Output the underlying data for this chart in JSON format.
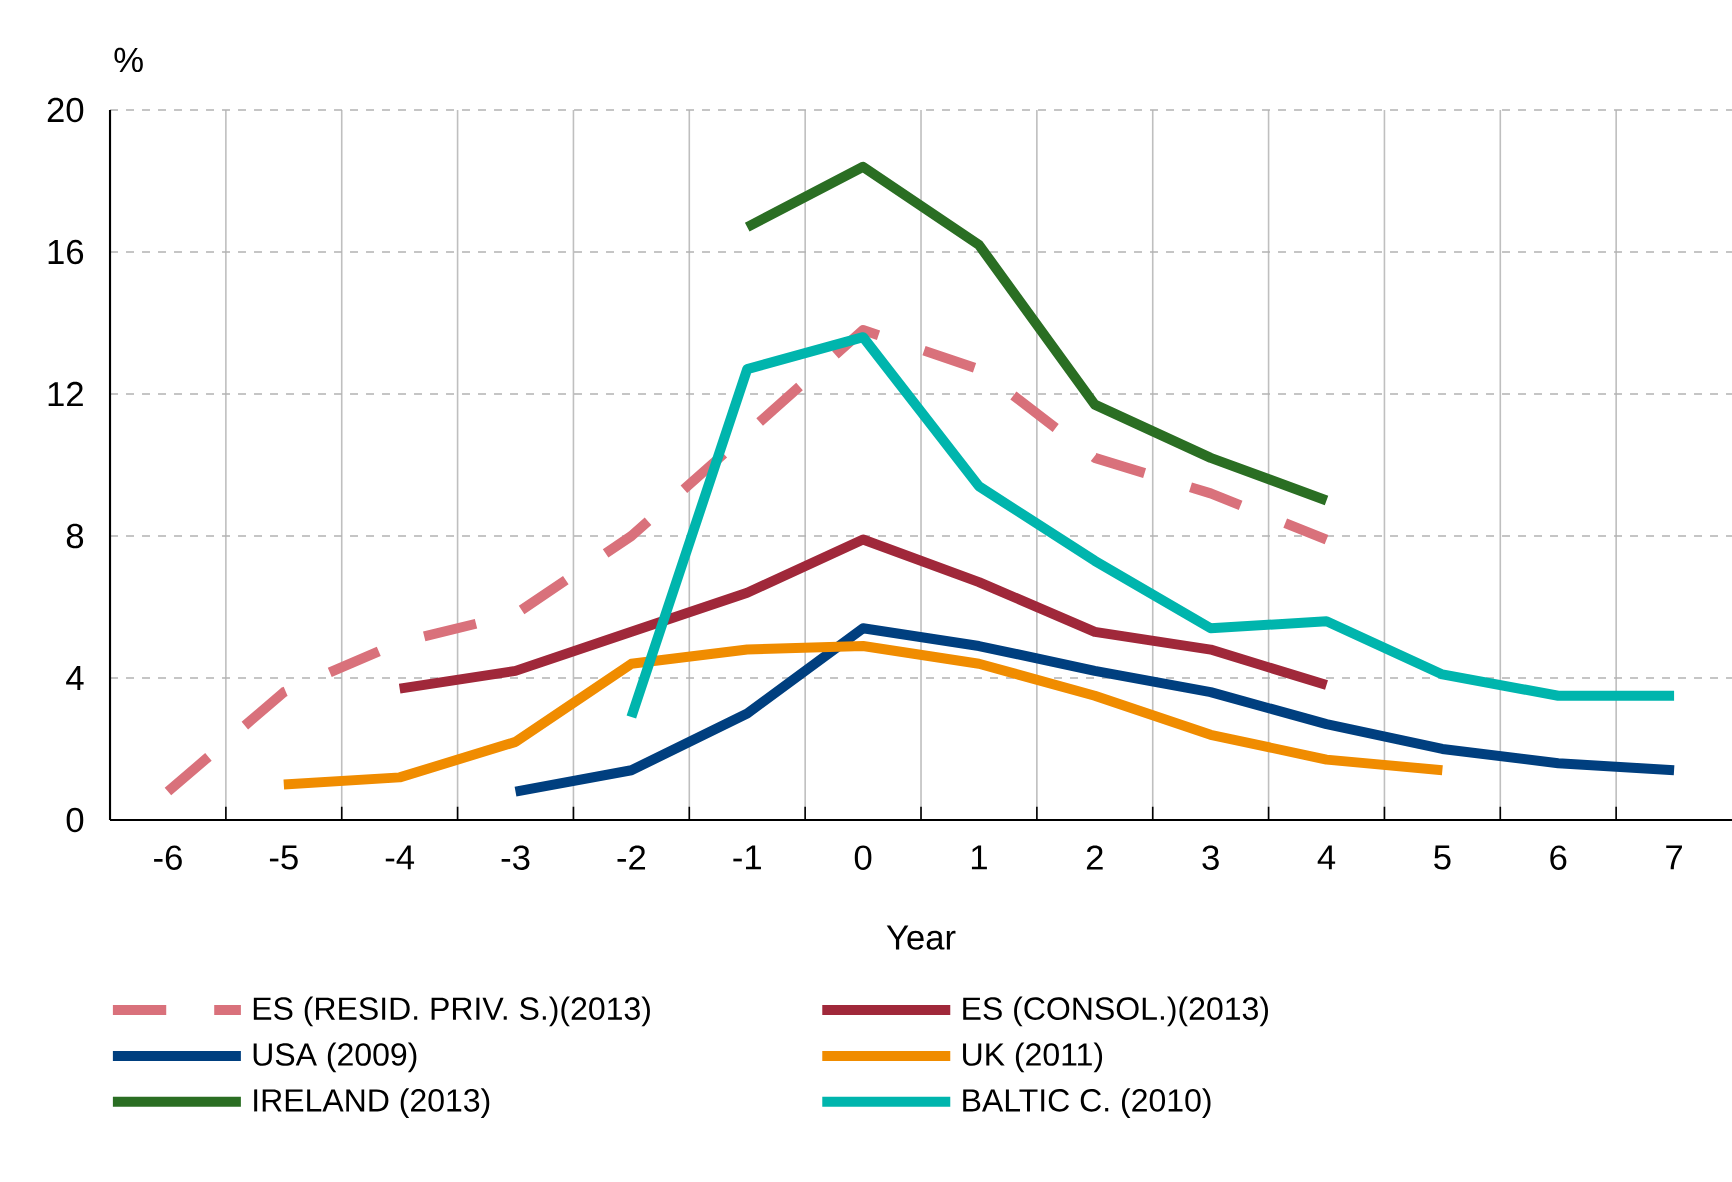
{
  "chart_data": {
    "type": "line",
    "xlabel": "Year",
    "ylabel": "%",
    "categories": [
      "-6",
      "-5",
      "-4",
      "-3",
      "-2",
      "-1",
      "0",
      "1",
      "2",
      "3",
      "4",
      "5",
      "6",
      "7"
    ],
    "ylim": [
      0,
      20
    ],
    "yticks": [
      0,
      4,
      8,
      12,
      16,
      20
    ],
    "grid": true,
    "legend": "bottom",
    "line_style": "solid",
    "series": [
      {
        "name": "ES (RESID. PRIV. S.)(2013)",
        "color": "#d9717b",
        "line_style": "dashed",
        "values": [
          0.8,
          3.6,
          5.0,
          5.8,
          8.0,
          10.9,
          13.8,
          12.7,
          10.2,
          9.2,
          7.9,
          null,
          null,
          null
        ]
      },
      {
        "name": "ES (CONSOL.)(2013)",
        "color": "#a0283a",
        "values": [
          null,
          null,
          3.7,
          4.2,
          5.3,
          6.4,
          7.9,
          6.7,
          5.3,
          4.8,
          3.8,
          null,
          null,
          null
        ]
      },
      {
        "name": "USA (2009)",
        "color": "#003f7f",
        "values": [
          null,
          null,
          null,
          0.8,
          1.4,
          3.0,
          5.4,
          4.9,
          4.2,
          3.6,
          2.7,
          2.0,
          1.6,
          1.4
        ]
      },
      {
        "name": "UK (2011)",
        "color": "#f08c00",
        "values": [
          null,
          1.0,
          1.2,
          2.2,
          4.4,
          4.8,
          4.9,
          4.4,
          3.5,
          2.4,
          1.7,
          1.4,
          null,
          null
        ]
      },
      {
        "name": "IRELAND (2013)",
        "color": "#2a6e23",
        "values": [
          null,
          null,
          null,
          null,
          null,
          16.7,
          18.4,
          16.2,
          11.7,
          10.2,
          9.0,
          null,
          null,
          null
        ]
      },
      {
        "name": "BALTIC C. (2010)",
        "color": "#00b5ad",
        "values": [
          null,
          null,
          null,
          null,
          2.9,
          12.7,
          13.6,
          9.4,
          7.3,
          5.4,
          5.6,
          4.1,
          3.5,
          3.5
        ]
      }
    ]
  }
}
